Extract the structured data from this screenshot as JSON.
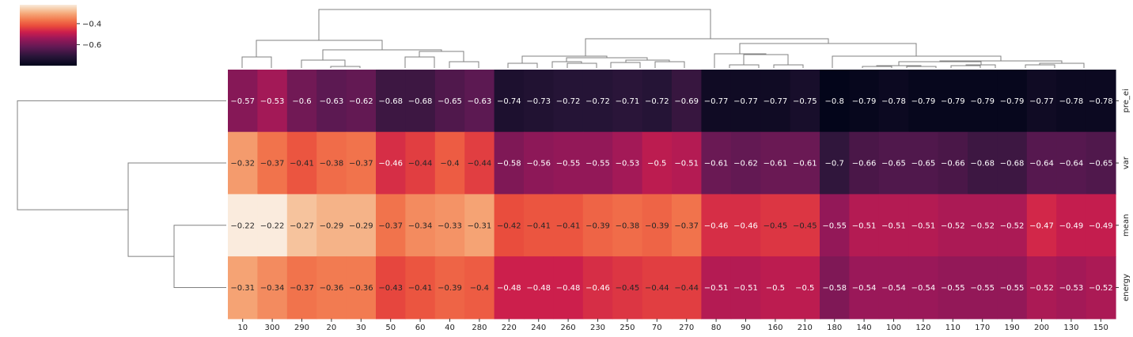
{
  "chart_data": {
    "type": "heatmap",
    "title": "",
    "xlabel": "",
    "ylabel": "",
    "columns": [
      "10",
      "300",
      "290",
      "20",
      "30",
      "50",
      "60",
      "40",
      "280",
      "220",
      "240",
      "260",
      "230",
      "250",
      "70",
      "270",
      "80",
      "90",
      "160",
      "210",
      "180",
      "140",
      "100",
      "120",
      "110",
      "170",
      "190",
      "200",
      "130",
      "150"
    ],
    "rows": [
      "pre_ei",
      "var",
      "mean",
      "energy"
    ],
    "values": [
      [
        -0.57,
        -0.53,
        -0.6,
        -0.63,
        -0.62,
        -0.68,
        -0.68,
        -0.65,
        -0.63,
        -0.74,
        -0.73,
        -0.72,
        -0.72,
        -0.71,
        -0.72,
        -0.69,
        -0.77,
        -0.77,
        -0.77,
        -0.75,
        -0.8,
        -0.79,
        -0.78,
        -0.79,
        -0.79,
        -0.79,
        -0.79,
        -0.77,
        -0.78,
        -0.78
      ],
      [
        -0.32,
        -0.37,
        -0.41,
        -0.38,
        -0.37,
        -0.46,
        -0.44,
        -0.4,
        -0.44,
        -0.58,
        -0.56,
        -0.55,
        -0.55,
        -0.53,
        -0.5,
        -0.51,
        -0.61,
        -0.62,
        -0.61,
        -0.61,
        -0.7,
        -0.66,
        -0.65,
        -0.65,
        -0.66,
        -0.68,
        -0.68,
        -0.64,
        -0.64,
        -0.65
      ],
      [
        -0.22,
        -0.22,
        -0.27,
        -0.29,
        -0.29,
        -0.37,
        -0.34,
        -0.33,
        -0.31,
        -0.42,
        -0.41,
        -0.41,
        -0.39,
        -0.38,
        -0.39,
        -0.37,
        -0.46,
        -0.46,
        -0.45,
        -0.45,
        -0.55,
        -0.51,
        -0.51,
        -0.51,
        -0.52,
        -0.52,
        -0.52,
        -0.47,
        -0.49,
        -0.49
      ],
      [
        -0.31,
        -0.34,
        -0.37,
        -0.36,
        -0.36,
        -0.43,
        -0.41,
        -0.39,
        -0.4,
        -0.48,
        -0.48,
        -0.48,
        -0.46,
        -0.45,
        -0.44,
        -0.44,
        -0.51,
        -0.51,
        -0.5,
        -0.5,
        -0.58,
        -0.54,
        -0.54,
        -0.54,
        -0.55,
        -0.55,
        -0.55,
        -0.52,
        -0.53,
        -0.52
      ]
    ],
    "vmin": -0.8,
    "vmax": -0.22,
    "colormap": "rocket",
    "colorbar": {
      "ticks": [
        -0.4,
        -0.6
      ],
      "tick_labels": [
        "−0.4",
        "−0.6"
      ],
      "placement": "top-left"
    },
    "dendrograms": {
      "columns": "top",
      "rows": "left"
    },
    "annotations": "cell values printed in each cell"
  }
}
